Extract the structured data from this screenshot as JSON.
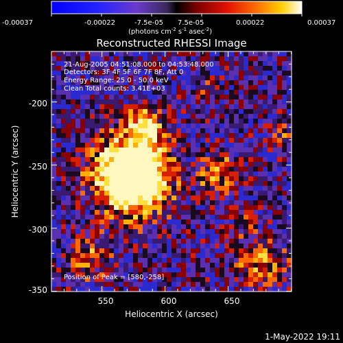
{
  "colorbar": {
    "tick_labels": [
      "-0.00037",
      "-0.00022",
      "-7.5e-05",
      "7.5e-05",
      "0.00022",
      "0.00037"
    ],
    "units_main": "(photons cm",
    "units_sup1": "-2",
    "units_mid1": " s",
    "units_sup2": "-1",
    "units_mid2": " asec",
    "units_sup3": "-2",
    "units_end": ")"
  },
  "plot": {
    "title": "Reconstructed RHESSI Image",
    "xlabel": "Heliocentric X (arcsec)",
    "ylabel": "Heliocentric Y (arcsec)",
    "xticks": [
      550,
      600,
      650
    ],
    "yticks": [
      -200,
      -250,
      -300,
      -350
    ],
    "x_range": [
      507,
      697
    ],
    "y_range": [
      -353,
      -163
    ],
    "info_lines": [
      "21-Aug-2005 04:51:08.000 to 04:53:48.000",
      "Detectors: 3F 4F 5F 6F 7F 8F, Att 0",
      "Energy Range: 25.0 - 50.0 keV",
      "Clean    Total counts: 3.41E+03"
    ],
    "peak_label": "Position of Peak = [580,-258]"
  },
  "timestamp": "1-May-2022 19:11"
}
